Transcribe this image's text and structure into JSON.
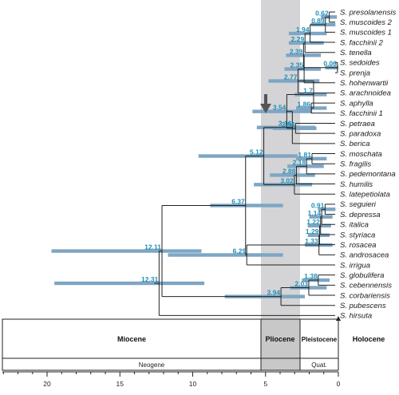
{
  "colors": {
    "hpd_bar": "#7ea6c4",
    "age_label": "#1f8fb5",
    "pliocene_band": "#d4d4d6",
    "pliocene_box": "#c8c8c8",
    "branch": "#222222"
  },
  "tree": {
    "taxa": [
      {
        "label": "S. presolanensis"
      },
      {
        "label": "S. muscoides 2"
      },
      {
        "label": "S. muscoides 1"
      },
      {
        "label": "S. facchinii 2"
      },
      {
        "label": "S. tenella"
      },
      {
        "label": "S. sedoides"
      },
      {
        "label": "S. prenja"
      },
      {
        "label": "S. hohenwartii"
      },
      {
        "label": "S. arachnoidea"
      },
      {
        "label": "S. aphylla"
      },
      {
        "label": "S. facchinii 1"
      },
      {
        "label": "S. petraea"
      },
      {
        "label": "S. paradoxa"
      },
      {
        "label": "S. berica"
      },
      {
        "label": "S. moschata"
      },
      {
        "label": "S. fragilis"
      },
      {
        "label": "S. pedemontana"
      },
      {
        "label": "S. humilis"
      },
      {
        "label": "S. latepetiolata"
      },
      {
        "label": "S. seguieri"
      },
      {
        "label": "S. depressa"
      },
      {
        "label": "S. italica"
      },
      {
        "label": "S. styriaca"
      },
      {
        "label": "S. rosacea"
      },
      {
        "label": "S. androsacea"
      },
      {
        "label": "S. irrigua"
      },
      {
        "label": "S. globulifera"
      },
      {
        "label": "S. cebennensis"
      },
      {
        "label": "S. corbariensis"
      },
      {
        "label": "S. pubescens"
      },
      {
        "label": "S. hirsuta"
      }
    ],
    "node_ages": [
      {
        "label": "0.62",
        "age_ma": 0.62,
        "hpd": [
          0.1,
          1.2
        ]
      },
      {
        "label": "0.89",
        "age_ma": 0.89,
        "hpd": [
          0.2,
          1.9
        ]
      },
      {
        "label": "1.94",
        "age_ma": 1.94,
        "hpd": [
          0.8,
          3.4
        ]
      },
      {
        "label": "2.29",
        "age_ma": 2.29,
        "hpd": [
          1.0,
          3.4
        ]
      },
      {
        "label": "0.06",
        "age_ma": 0.06,
        "hpd": [
          0.0,
          0.9
        ]
      },
      {
        "label": "2.39",
        "age_ma": 2.39,
        "hpd": [
          1.2,
          3.6
        ]
      },
      {
        "label": "2.35",
        "age_ma": 2.35,
        "hpd": [
          1.2,
          3.7
        ]
      },
      {
        "label": "2.77",
        "age_ma": 2.77,
        "hpd": [
          1.3,
          4.8
        ]
      },
      {
        "label": "1.86",
        "age_ma": 1.86,
        "hpd": [
          0.8,
          2.9
        ]
      },
      {
        "label": "1.7",
        "age_ma": 1.7,
        "hpd": [
          0.8,
          3.0
        ]
      },
      {
        "label": "3.54",
        "age_ma": 3.54,
        "hpd": [
          1.8,
          5.9
        ]
      },
      {
        "label": "2.94",
        "age_ma": 2.94,
        "hpd": [
          1.5,
          4.5
        ]
      },
      {
        "label": "3.16",
        "age_ma": 3.16,
        "hpd": [
          1.6,
          5.6
        ]
      },
      {
        "label": "5.12",
        "age_ma": 5.12,
        "hpd": [
          2.8,
          9.6
        ]
      },
      {
        "label": "1.81",
        "age_ma": 1.81,
        "hpd": [
          0.8,
          2.9
        ]
      },
      {
        "label": "2.18",
        "age_ma": 2.18,
        "hpd": [
          1.0,
          3.5
        ]
      },
      {
        "label": "2.88",
        "age_ma": 2.88,
        "hpd": [
          1.6,
          4.7
        ]
      },
      {
        "label": "3.02",
        "age_ma": 3.02,
        "hpd": [
          1.8,
          5.8
        ]
      },
      {
        "label": "6.37",
        "age_ma": 6.37,
        "hpd": [
          3.8,
          8.8
        ]
      },
      {
        "label": "0.91",
        "age_ma": 0.91,
        "hpd": [
          0.2,
          1.4
        ]
      },
      {
        "label": "1.14",
        "age_ma": 1.14,
        "hpd": [
          0.4,
          2.0
        ]
      },
      {
        "label": "1.22",
        "age_ma": 1.22,
        "hpd": [
          0.5,
          2.1
        ]
      },
      {
        "label": "1.29",
        "age_ma": 1.29,
        "hpd": [
          0.6,
          2.1
        ]
      },
      {
        "label": "1.33",
        "age_ma": 1.33,
        "hpd": [
          0.4,
          2.3
        ]
      },
      {
        "label": "6.29",
        "age_ma": 6.29,
        "hpd": [
          3.8,
          11.7
        ]
      },
      {
        "label": "12.11",
        "age_ma": 12.11,
        "hpd": [
          9.4,
          19.7
        ]
      },
      {
        "label": "1.38",
        "age_ma": 1.38,
        "hpd": [
          0.6,
          2.5
        ]
      },
      {
        "label": "2.03",
        "age_ma": 2.03,
        "hpd": [
          0.8,
          3.3
        ]
      },
      {
        "label": "3.94",
        "age_ma": 3.94,
        "hpd": [
          2.3,
          7.8
        ]
      },
      {
        "label": "12.31",
        "age_ma": 12.31,
        "hpd": [
          9.2,
          19.5
        ]
      }
    ]
  },
  "timescale": {
    "epochs": [
      {
        "label": "Miocene",
        "from_ma": 23.0,
        "to_ma": 5.33
      },
      {
        "label": "Pliocene",
        "from_ma": 5.33,
        "to_ma": 2.58
      },
      {
        "label": "Pleistocene",
        "from_ma": 2.58,
        "to_ma": 0.0
      },
      {
        "label": "Holocene",
        "from_ma": 0.0,
        "to_ma": 0.0
      }
    ],
    "periods": [
      {
        "label": "Neogene",
        "from_ma": 23.0,
        "to_ma": 2.58
      },
      {
        "label": "Quat.",
        "from_ma": 2.58,
        "to_ma": 0.0
      }
    ],
    "ticks": [
      "0",
      "5",
      "10",
      "15",
      "20"
    ]
  }
}
